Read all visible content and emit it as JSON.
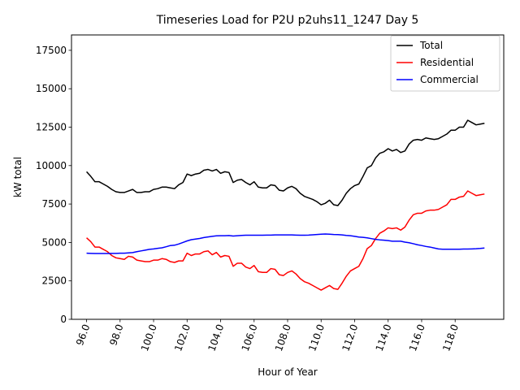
{
  "chart_data": {
    "type": "line",
    "title": "Timeseries Load for P2U p2uhs11_1247  Day 5",
    "xlabel": "Hour of Year",
    "ylabel": "kW total",
    "xlim": [
      95.1,
      120.9
    ],
    "ylim": [
      0,
      18500
    ],
    "xticks": [
      96,
      98,
      100,
      102,
      104,
      106,
      108,
      110,
      112,
      114,
      116,
      118
    ],
    "xtick_labels": [
      "96.0",
      "98.0",
      "100.0",
      "102.0",
      "104.0",
      "106.0",
      "108.0",
      "110.0",
      "112.0",
      "114.0",
      "116.0",
      "118.0"
    ],
    "yticks": [
      0,
      2500,
      5000,
      7500,
      10000,
      12500,
      15000,
      17500
    ],
    "ytick_labels": [
      "0",
      "2500",
      "5000",
      "7500",
      "10000",
      "12500",
      "15000",
      "17500"
    ],
    "legend_position": "top-right",
    "x_start": 96.0,
    "x_step": 0.25,
    "series": [
      {
        "name": "Total",
        "color": "#000000",
        "values": [
          9600,
          9300,
          8950,
          8950,
          8800,
          8650,
          8450,
          8300,
          8250,
          8250,
          8350,
          8450,
          8250,
          8250,
          8300,
          8300,
          8450,
          8500,
          8600,
          8600,
          8550,
          8500,
          8750,
          8900,
          9450,
          9350,
          9450,
          9500,
          9700,
          9750,
          9650,
          9750,
          9500,
          9600,
          9550,
          8900,
          9050,
          9100,
          8900,
          8750,
          8950,
          8600,
          8550,
          8550,
          8750,
          8700,
          8400,
          8350,
          8550,
          8650,
          8500,
          8200,
          8000,
          7900,
          7800,
          7650,
          7450,
          7550,
          7750,
          7450,
          7400,
          7750,
          8200,
          8500,
          8700,
          8800,
          9300,
          9850,
          10000,
          10500,
          10800,
          10900,
          11100,
          10950,
          11050,
          10850,
          10950,
          11400,
          11650,
          11700,
          11650,
          11800,
          11750,
          11700,
          11750,
          11900,
          12050,
          12300,
          12300,
          12500,
          12500,
          12950,
          12800,
          12650,
          12700,
          12750
        ]
      },
      {
        "name": "Residential",
        "color": "#ff0000",
        "values": [
          5300,
          5050,
          4700,
          4700,
          4550,
          4400,
          4150,
          4000,
          3950,
          3900,
          4100,
          4050,
          3850,
          3800,
          3750,
          3750,
          3850,
          3850,
          3950,
          3900,
          3750,
          3700,
          3800,
          3800,
          4300,
          4150,
          4250,
          4250,
          4400,
          4450,
          4200,
          4350,
          4050,
          4150,
          4100,
          3450,
          3650,
          3650,
          3400,
          3300,
          3500,
          3100,
          3050,
          3050,
          3300,
          3250,
          2900,
          2850,
          3050,
          3150,
          2950,
          2650,
          2450,
          2350,
          2200,
          2050,
          1900,
          2050,
          2200,
          2000,
          1950,
          2350,
          2800,
          3150,
          3300,
          3450,
          3950,
          4600,
          4800,
          5250,
          5600,
          5750,
          5950,
          5900,
          5950,
          5800,
          6000,
          6450,
          6800,
          6900,
          6900,
          7050,
          7100,
          7100,
          7150,
          7300,
          7450,
          7800,
          7800,
          7950,
          8000,
          8350,
          8200,
          8050,
          8100,
          8150
        ]
      },
      {
        "name": "Commercial",
        "color": "#0000ff",
        "values": [
          4300,
          4290,
          4280,
          4280,
          4280,
          4280,
          4290,
          4290,
          4300,
          4300,
          4320,
          4340,
          4400,
          4450,
          4500,
          4550,
          4580,
          4620,
          4650,
          4720,
          4800,
          4820,
          4900,
          5000,
          5100,
          5180,
          5220,
          5260,
          5320,
          5360,
          5400,
          5430,
          5440,
          5440,
          5450,
          5420,
          5440,
          5460,
          5470,
          5470,
          5470,
          5470,
          5470,
          5480,
          5480,
          5490,
          5490,
          5490,
          5490,
          5490,
          5480,
          5470,
          5470,
          5480,
          5500,
          5520,
          5540,
          5550,
          5540,
          5520,
          5510,
          5490,
          5460,
          5440,
          5400,
          5350,
          5330,
          5300,
          5250,
          5200,
          5170,
          5150,
          5120,
          5080,
          5080,
          5080,
          5020,
          4980,
          4920,
          4850,
          4800,
          4740,
          4700,
          4640,
          4580,
          4560,
          4560,
          4560,
          4560,
          4560,
          4570,
          4570,
          4580,
          4590,
          4610,
          4640
        ]
      }
    ]
  }
}
